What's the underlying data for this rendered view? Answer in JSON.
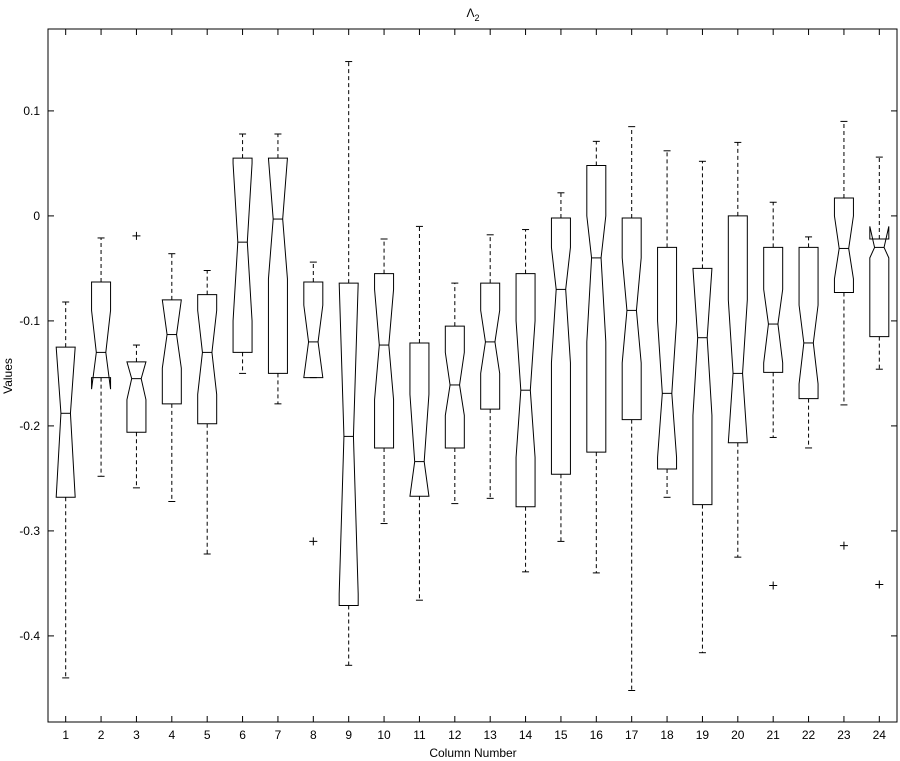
{
  "chart_data": {
    "type": "boxplot",
    "title": "Λ",
    "title_subscript": "2",
    "xlabel": "Column Number",
    "ylabel": "Values",
    "categories": [
      "1",
      "2",
      "3",
      "4",
      "5",
      "6",
      "7",
      "8",
      "9",
      "10",
      "11",
      "12",
      "13",
      "14",
      "15",
      "16",
      "17",
      "18",
      "19",
      "20",
      "21",
      "22",
      "23",
      "24"
    ],
    "ylim": [
      -0.482,
      0.178
    ],
    "yticks": [
      -0.4,
      -0.3,
      -0.2,
      -0.1,
      0,
      0.1
    ],
    "color": "#000000",
    "boxes": [
      {
        "high": -0.082,
        "q3": -0.125,
        "median": -0.188,
        "q1": -0.268,
        "low": -0.44,
        "notch_high": -0.125,
        "notch_low": -0.268,
        "outliers": []
      },
      {
        "high": -0.021,
        "q3": -0.063,
        "median": -0.13,
        "q1": -0.154,
        "low": -0.248,
        "notch_high": -0.09,
        "notch_low": -0.165,
        "outliers": []
      },
      {
        "high": -0.123,
        "q3": -0.139,
        "median": -0.155,
        "q1": -0.206,
        "low": -0.259,
        "notch_high": -0.139,
        "notch_low": -0.175,
        "outliers": [
          -0.019
        ]
      },
      {
        "high": -0.036,
        "q3": -0.08,
        "median": -0.113,
        "q1": -0.179,
        "low": -0.272,
        "notch_high": -0.08,
        "notch_low": -0.145,
        "outliers": []
      },
      {
        "high": -0.052,
        "q3": -0.075,
        "median": -0.13,
        "q1": -0.198,
        "low": -0.322,
        "notch_high": -0.09,
        "notch_low": -0.17,
        "outliers": []
      },
      {
        "high": 0.078,
        "q3": 0.055,
        "median": -0.025,
        "q1": -0.13,
        "low": -0.15,
        "notch_high": 0.05,
        "notch_low": -0.1,
        "outliers": []
      },
      {
        "high": 0.078,
        "q3": 0.055,
        "median": -0.003,
        "q1": -0.15,
        "low": -0.179,
        "notch_high": 0.055,
        "notch_low": -0.06,
        "outliers": []
      },
      {
        "high": -0.044,
        "q3": -0.063,
        "median": -0.12,
        "q1": -0.154,
        "low": -0.154,
        "notch_high": -0.085,
        "notch_low": -0.154,
        "outliers": [
          -0.31
        ]
      },
      {
        "high": 0.147,
        "q3": -0.064,
        "median": -0.21,
        "q1": -0.371,
        "low": -0.428,
        "notch_high": -0.064,
        "notch_low": -0.36,
        "outliers": []
      },
      {
        "high": -0.022,
        "q3": -0.055,
        "median": -0.123,
        "q1": -0.221,
        "low": -0.293,
        "notch_high": -0.07,
        "notch_low": -0.175,
        "outliers": []
      },
      {
        "high": -0.01,
        "q3": -0.121,
        "median": -0.234,
        "q1": -0.267,
        "low": -0.366,
        "notch_high": -0.17,
        "notch_low": -0.267,
        "outliers": []
      },
      {
        "high": -0.064,
        "q3": -0.105,
        "median": -0.161,
        "q1": -0.221,
        "low": -0.274,
        "notch_high": -0.13,
        "notch_low": -0.19,
        "outliers": []
      },
      {
        "high": -0.018,
        "q3": -0.064,
        "median": -0.12,
        "q1": -0.184,
        "low": -0.269,
        "notch_high": -0.09,
        "notch_low": -0.15,
        "outliers": []
      },
      {
        "high": -0.013,
        "q3": -0.055,
        "median": -0.166,
        "q1": -0.277,
        "low": -0.339,
        "notch_high": -0.1,
        "notch_low": -0.23,
        "outliers": []
      },
      {
        "high": 0.022,
        "q3": -0.002,
        "median": -0.07,
        "q1": -0.246,
        "low": -0.31,
        "notch_high": -0.03,
        "notch_low": -0.14,
        "outliers": []
      },
      {
        "high": 0.071,
        "q3": 0.048,
        "median": -0.04,
        "q1": -0.225,
        "low": -0.34,
        "notch_high": 0.0,
        "notch_low": -0.12,
        "outliers": []
      },
      {
        "high": 0.085,
        "q3": -0.002,
        "median": -0.09,
        "q1": -0.194,
        "low": -0.452,
        "notch_high": -0.04,
        "notch_low": -0.14,
        "outliers": []
      },
      {
        "high": 0.062,
        "q3": -0.03,
        "median": -0.169,
        "q1": -0.241,
        "low": -0.268,
        "notch_high": -0.1,
        "notch_low": -0.23,
        "outliers": []
      },
      {
        "high": 0.052,
        "q3": -0.05,
        "median": -0.116,
        "q1": -0.275,
        "low": -0.416,
        "notch_high": -0.05,
        "notch_low": -0.19,
        "outliers": []
      },
      {
        "high": 0.07,
        "q3": 0.0,
        "median": -0.15,
        "q1": -0.216,
        "low": -0.325,
        "notch_high": -0.08,
        "notch_low": -0.216,
        "outliers": []
      },
      {
        "high": 0.013,
        "q3": -0.03,
        "median": -0.103,
        "q1": -0.149,
        "low": -0.211,
        "notch_high": -0.07,
        "notch_low": -0.14,
        "outliers": [
          -0.352
        ]
      },
      {
        "high": -0.02,
        "q3": -0.03,
        "median": -0.121,
        "q1": -0.174,
        "low": -0.221,
        "notch_high": -0.085,
        "notch_low": -0.16,
        "outliers": []
      },
      {
        "high": 0.09,
        "q3": 0.017,
        "median": -0.031,
        "q1": -0.073,
        "low": -0.18,
        "notch_high": 0.0,
        "notch_low": -0.06,
        "outliers": [
          -0.314
        ]
      },
      {
        "high": 0.056,
        "q3": -0.022,
        "median": -0.03,
        "q1": -0.115,
        "low": -0.146,
        "notch_high": -0.01,
        "notch_low": -0.04,
        "outliers": [
          -0.351
        ]
      }
    ]
  }
}
